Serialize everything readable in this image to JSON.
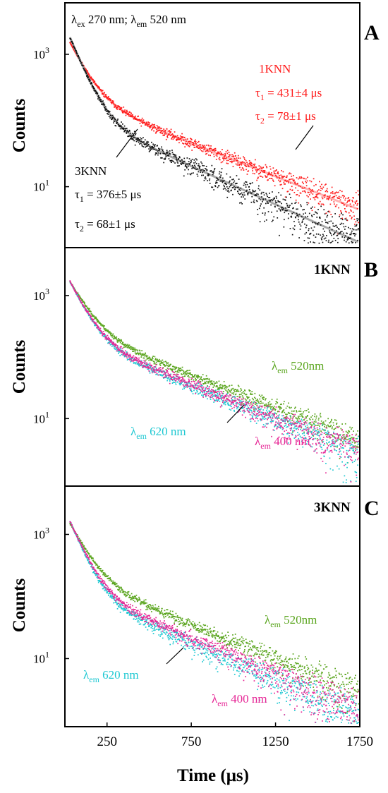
{
  "colors": {
    "red": "#ff1a1a",
    "pink": "#ffb0b0",
    "black": "#111111",
    "grey": "#a8a8a8",
    "green": "#5aa51e",
    "cyan": "#1ec8d2",
    "magenta": "#e62796"
  },
  "chart_data": [
    {
      "type": "scatter",
      "panel": "A",
      "xlim": [
        0,
        1750
      ],
      "yscale": "log",
      "ylim": [
        1.2,
        6000
      ],
      "ylabel": "Counts",
      "yticks": [
        {
          "value": 1000,
          "base": "10",
          "exp": "3"
        },
        {
          "value": 10,
          "base": "10",
          "exp": "1"
        }
      ],
      "legend": {
        "ex_sym": "λ",
        "ex_sub": "ex",
        "ex_text": " 270 nm; ",
        "em_sym": "λ",
        "em_sub": "em",
        "em_text": " 520 nm"
      },
      "annotations": {
        "series1_label": "1KNN",
        "series1_t1_sym": "τ",
        "series1_t1_sub": "1",
        "series1_t1_text": " = 431±4 μs",
        "series1_t2_sym": "τ",
        "series1_t2_sub": "2",
        "series1_t2_text": " = 78±1 μs",
        "series2_label": "3KNN",
        "series2_t1_sym": "τ",
        "series2_t1_sub": "1",
        "series2_t1_text": " = 376±5 μs",
        "series2_t2_sym": "τ",
        "series2_t2_sub": "2",
        "series2_t2_text": " = 68±1 μs"
      },
      "series": [
        {
          "name": "1KNN",
          "a1": 1900,
          "t1": 78,
          "a2": 260,
          "t2": 431,
          "color": "#ff1a1a",
          "fit_color": "#ffb0b0"
        },
        {
          "name": "3KNN",
          "a1": 2600,
          "t1": 68,
          "a2": 150,
          "t2": 376,
          "color": "#111111",
          "fit_color": "#a8a8a8"
        }
      ]
    },
    {
      "type": "scatter",
      "panel": "B",
      "xlim": [
        0,
        1750
      ],
      "yscale": "log",
      "ylim": [
        0.8,
        6000
      ],
      "ylabel": "Counts",
      "yticks": [
        {
          "value": 1000,
          "base": "10",
          "exp": "3"
        },
        {
          "value": 10,
          "base": "10",
          "exp": "1"
        }
      ],
      "sample_label": "1KNN",
      "series": [
        {
          "sym": "λ",
          "sub": "em",
          "text": " 520nm",
          "a1": 2000,
          "t1": 85,
          "a2": 300,
          "t2": 420,
          "color": "#5aa51e"
        },
        {
          "sym": "λ",
          "sub": "em",
          "text": " 620 nm",
          "a1": 2200,
          "t1": 75,
          "a2": 220,
          "t2": 400,
          "color": "#1ec8d2"
        },
        {
          "sym": "λ",
          "sub": "em",
          "text": " 400 nm",
          "a1": 2200,
          "t1": 75,
          "a2": 240,
          "t2": 395,
          "color": "#e62796"
        }
      ]
    },
    {
      "type": "scatter",
      "panel": "C",
      "xlim": [
        0,
        1750
      ],
      "yscale": "log",
      "ylim": [
        0.8,
        6000
      ],
      "ylabel": "Counts",
      "xlabel": "Time (μs)",
      "xticks": [
        250,
        750,
        1250,
        1750
      ],
      "yticks": [
        {
          "value": 1000,
          "base": "10",
          "exp": "3"
        },
        {
          "value": 10,
          "base": "10",
          "exp": "1"
        }
      ],
      "sample_label": "3KNN",
      "series": [
        {
          "sym": "λ",
          "sub": "em",
          "text": " 520nm",
          "a1": 1900,
          "t1": 80,
          "a2": 230,
          "t2": 400,
          "color": "#5aa51e"
        },
        {
          "sym": "λ",
          "sub": "em",
          "text": " 620 nm",
          "a1": 2400,
          "t1": 65,
          "a2": 140,
          "t2": 360,
          "color": "#1ec8d2"
        },
        {
          "sym": "λ",
          "sub": "em",
          "text": " 400 nm",
          "a1": 2300,
          "t1": 68,
          "a2": 160,
          "t2": 370,
          "color": "#e62796"
        }
      ]
    }
  ]
}
